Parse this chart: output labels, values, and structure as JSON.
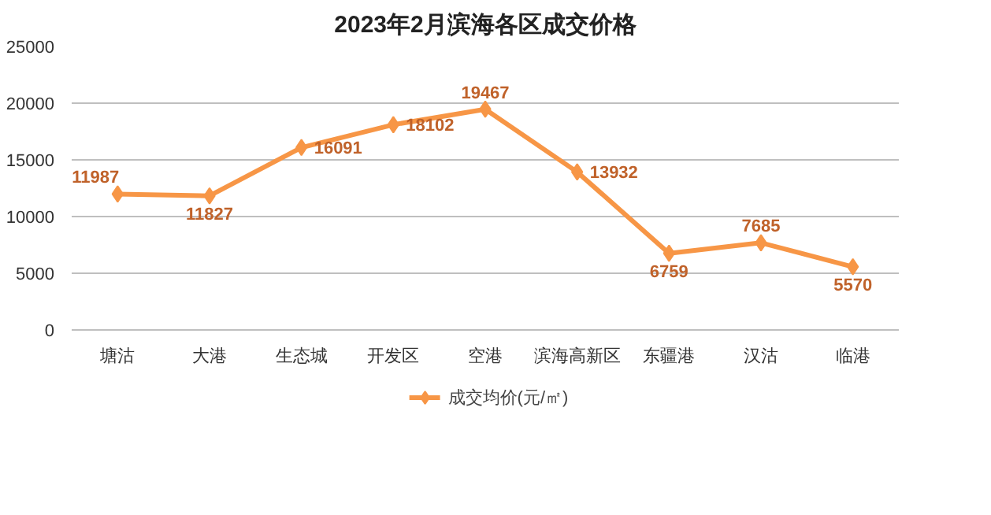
{
  "chart_data": {
    "type": "line",
    "title": "2023年2月滨海各区成交价格",
    "categories": [
      "塘沽",
      "大港",
      "生态城",
      "开发区",
      "空港",
      "滨海高新区",
      "东疆港",
      "汉沽",
      "临港"
    ],
    "series": [
      {
        "name": "成交均价(元/㎡)",
        "color": "#f79646",
        "values": [
          11987,
          11827,
          16091,
          18102,
          19467,
          13932,
          6759,
          7685,
          5570
        ]
      }
    ],
    "ylim": [
      0,
      25000
    ],
    "yticks": [
      0,
      5000,
      10000,
      15000,
      20000,
      25000
    ],
    "grid": "y",
    "legend": "bottom",
    "marker": "diamond",
    "line_style": "solid",
    "data_labels": true
  }
}
